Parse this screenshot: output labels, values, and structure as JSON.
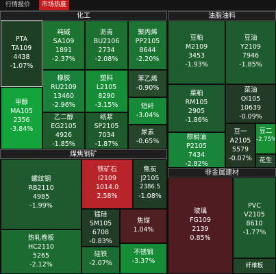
{
  "tabs": [
    {
      "label": "行情报价",
      "active": false
    },
    {
      "label": "市场热度",
      "active": true
    }
  ],
  "sectors": {
    "chemical": "化工",
    "oils": "油脂油料",
    "coal_steel": "煤焦钢矿",
    "nonmetal": "非金属建材"
  },
  "tiles": [
    {
      "name": "PTA",
      "code": "TA109",
      "price": "4438",
      "change": "-1.07%",
      "color": "#1e3f23"
    },
    {
      "name": "纯碱",
      "code": "SA109",
      "price": "1891",
      "change": "-2.37%",
      "color": "#1c7431"
    },
    {
      "name": "沥青",
      "code": "BU2106",
      "price": "2734",
      "change": "-2.08%",
      "color": "#1c7130"
    },
    {
      "name": "聚丙烯",
      "code": "PP2105",
      "price": "8644",
      "change": "-2.20%",
      "color": "#1b7431"
    },
    {
      "name": "甲醇",
      "code": "MA105",
      "price": "2356",
      "change": "-3.84%",
      "color": "#13a43b"
    },
    {
      "name": "橡胶",
      "code": "RU2109",
      "price": "13460",
      "change": "-2.96%",
      "color": "#19813a"
    },
    {
      "name": "塑料",
      "code": "L2105",
      "price": "8290",
      "change": "-3.15%",
      "color": "#168d37"
    },
    {
      "name": "苯乙烯",
      "code": "",
      "price": "",
      "change": "-0.90%",
      "color": "#254b2c"
    },
    {
      "name": "短纤",
      "code": "",
      "price": "",
      "change": "-3.04%",
      "color": "#168a37"
    },
    {
      "name": "乙二醇",
      "code": "EG2105",
      "price": "4926",
      "change": "-1.85%",
      "color": "#1f5a2d"
    },
    {
      "name": "纸浆",
      "code": "SP2105",
      "price": "7034",
      "change": "-1.87%",
      "color": "#1f5a2d"
    },
    {
      "name": "尿素",
      "code": "",
      "price": "",
      "change": "-0.65%",
      "color": "#25442a"
    },
    {
      "name": "豆粕",
      "code": "M2109",
      "price": "3453",
      "change": "-1.93%",
      "color": "#1e5e2e"
    },
    {
      "name": "豆油",
      "code": "Y2109",
      "price": "7946",
      "change": "-1.85%",
      "color": "#1e5b2e"
    },
    {
      "name": "菜粕",
      "code": "RM105",
      "price": "2905",
      "change": "-1.86%",
      "color": "#1e5b2e"
    },
    {
      "name": "菜油",
      "code": "OI105",
      "price": "10639",
      "change": "-0.09%",
      "color": "#233a26"
    },
    {
      "name": "豆一",
      "code": "A2105",
      "price": "5579",
      "change": "-0.07%",
      "color": "#223825"
    },
    {
      "name": "豆二",
      "code": "",
      "price": "",
      "change": "-2.75%",
      "color": "#189136"
    },
    {
      "name": "棕榈油",
      "code": "P2105",
      "price": "7434",
      "change": "-2.82%",
      "color": "#19853a"
    },
    {
      "name": "花生",
      "code": "",
      "price": "",
      "change": "",
      "color": "#22462a"
    },
    {
      "name": "螺纹钢",
      "code": "RB2110",
      "price": "4985",
      "change": "-1.99%",
      "color": "#1e5a2e"
    },
    {
      "name": "铁矿石",
      "code": "I2109",
      "price": "1014.0",
      "change": "2.58%",
      "color": "#b8242a"
    },
    {
      "name": "焦炭",
      "code": "J2105",
      "price": "2386.5",
      "change": "-1.08%",
      "color": "#213c26"
    },
    {
      "name": "锰硅",
      "code": "SM105",
      "price": "6708",
      "change": "-0.83%",
      "color": "#213c26"
    },
    {
      "name": "焦煤",
      "code": "",
      "price": "",
      "change": "1.04%",
      "color": "#4f1f22"
    },
    {
      "name": "热轧卷板",
      "code": "HC2110",
      "price": "5265",
      "change": "-2.12%",
      "color": "#1c6b30"
    },
    {
      "name": "硅铁",
      "code": "",
      "price": "",
      "change": "-2.07%",
      "color": "#1c6b30"
    },
    {
      "name": "不锈钢",
      "code": "",
      "price": "",
      "change": "-3.37%",
      "color": "#168c37"
    },
    {
      "name": "玻璃",
      "code": "FG109",
      "price": "2139",
      "change": "0.85%",
      "color": "#4f1d21"
    },
    {
      "name": "PVC",
      "code": "V2105",
      "price": "8610",
      "change": "-1.77%",
      "color": "#1e5b2e"
    },
    {
      "name": "纤维板",
      "code": "",
      "price": "",
      "change": "",
      "color": "#22462a"
    }
  ]
}
